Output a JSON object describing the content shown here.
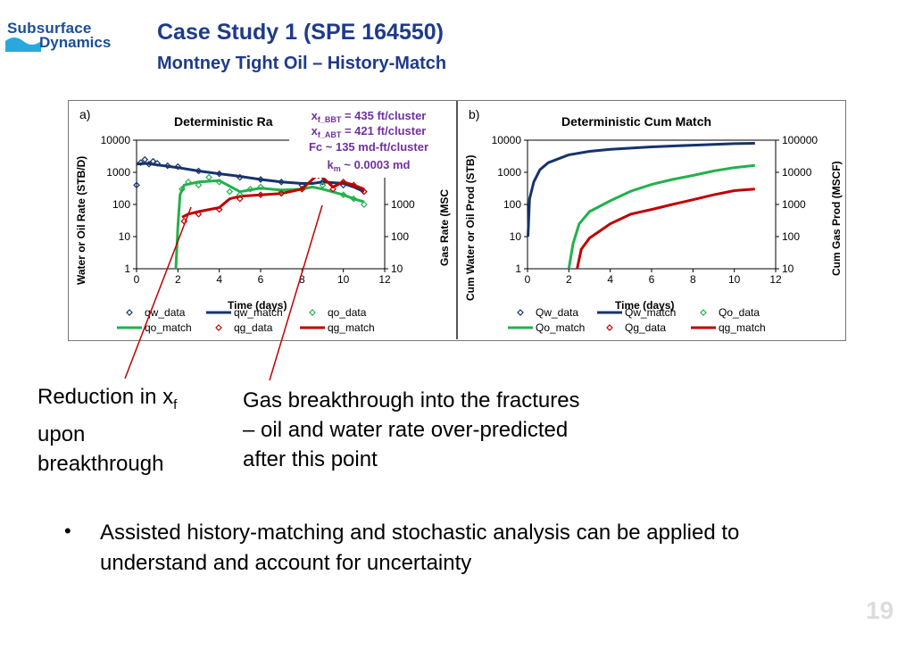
{
  "logo": {
    "line1": "Subsurface",
    "line2": "Dynamics"
  },
  "header": {
    "title": "Case Study 1 (SPE 164550)",
    "subtitle": "Montney Tight Oil – History-Match"
  },
  "callouts": {
    "reduction_main": "Reduction in x",
    "reduction_sub": "f",
    "reduction_rest1": "upon",
    "reduction_rest2": "breakthrough",
    "gas_line1": "Gas breakthrough into the fractures",
    "gas_line2": "– oil and water rate over-predicted",
    "gas_line3": "after this point"
  },
  "bullet": {
    "marker": "•",
    "text": "Assisted history-matching and stochastic analysis can be applied to understand and account for uncertainty"
  },
  "page_number": "19",
  "chart_data": [
    {
      "type": "scatter",
      "panel_label": "a)",
      "title": "Deterministic Ra",
      "xlabel": "Time (days)",
      "ylabel": "Water or Oil Rate (STB/D)",
      "y2label": "Gas Rate (MSC",
      "xlim": [
        0,
        12
      ],
      "ylim": [
        1,
        10000
      ],
      "y2lim": [
        10,
        100000
      ],
      "yscale": "log",
      "xticks": [
        "0",
        "2",
        "4",
        "6",
        "8",
        "10",
        "12"
      ],
      "yticks": [
        "1",
        "10",
        "100",
        "1000",
        "10000"
      ],
      "y2ticks": [
        "10",
        "100",
        "1000",
        "10000"
      ],
      "annotations": [
        {
          "main": "x",
          "sub": "f_BBT",
          "rest": " = 435 ft/cluster"
        },
        {
          "main": "x",
          "sub": "f_ABT",
          "rest": " = 421 ft/cluster"
        },
        {
          "main": "Fc ~ 135 md-ft/cluster",
          "sub": "",
          "rest": ""
        },
        {
          "main": "k",
          "sub": "m",
          "rest": " ~ 0.0003 md"
        }
      ],
      "legend": [
        "qw_data",
        "qw_match",
        "qo_data",
        "qo_match",
        "qg_data",
        "qg_match"
      ],
      "colors": {
        "water": "#16336b",
        "oil": "#22b14c",
        "gas": "#c00000"
      },
      "series": [
        {
          "name": "qw_match",
          "style": "line",
          "color": "#16336b",
          "axis": "left",
          "x": [
            0,
            0.5,
            1,
            2,
            3,
            4,
            5,
            6,
            7,
            8,
            8.5,
            9,
            10,
            10.5,
            11
          ],
          "y": [
            1800,
            1900,
            1700,
            1400,
            1100,
            900,
            750,
            600,
            500,
            450,
            450,
            500,
            450,
            350,
            250
          ]
        },
        {
          "name": "qo_match",
          "style": "line",
          "color": "#22b14c",
          "axis": "left",
          "x": [
            1.9,
            2.0,
            2.1,
            2.3,
            3,
            4,
            5,
            6,
            7,
            8,
            8.5,
            9,
            10,
            10.5,
            11
          ],
          "y": [
            1,
            20,
            200,
            400,
            500,
            550,
            250,
            320,
            280,
            300,
            350,
            300,
            200,
            150,
            120
          ]
        },
        {
          "name": "qg_match",
          "style": "line",
          "color": "#c00000",
          "axis": "right",
          "x": [
            2.2,
            2.5,
            3,
            4,
            4.5,
            5,
            6,
            7,
            8,
            8.8,
            9.5,
            10,
            10.5,
            11
          ],
          "y": [
            400,
            500,
            600,
            800,
            1500,
            1800,
            2000,
            2200,
            3000,
            9000,
            3500,
            5000,
            4000,
            3000
          ]
        },
        {
          "name": "qw_data",
          "style": "marker",
          "color": "#16336b",
          "axis": "left",
          "x": [
            0,
            0.2,
            0.4,
            0.6,
            0.8,
            1,
            1.5,
            2,
            3,
            4,
            5,
            6,
            7,
            8,
            9,
            10,
            11
          ],
          "y": [
            400,
            2000,
            2500,
            1800,
            2200,
            1900,
            1600,
            1500,
            1100,
            900,
            700,
            600,
            500,
            400,
            500,
            400,
            250
          ]
        },
        {
          "name": "qo_data",
          "style": "marker",
          "color": "#22b14c",
          "axis": "left",
          "x": [
            2.2,
            2.5,
            3,
            3.5,
            4,
            4.5,
            5,
            5.5,
            6,
            7,
            8,
            9,
            10,
            10.5,
            11
          ],
          "y": [
            300,
            500,
            400,
            700,
            500,
            250,
            200,
            300,
            350,
            250,
            300,
            400,
            200,
            150,
            100
          ]
        },
        {
          "name": "qg_data",
          "style": "marker",
          "color": "#c00000",
          "axis": "right",
          "x": [
            2.3,
            3,
            4,
            5,
            6,
            7,
            8,
            8.8,
            9.5,
            10,
            10.5,
            11
          ],
          "y": [
            300,
            500,
            700,
            1500,
            2000,
            2200,
            3000,
            8000,
            3000,
            5000,
            4000,
            2500
          ]
        }
      ]
    },
    {
      "type": "line",
      "panel_label": "b)",
      "title": "Deterministic Cum Match",
      "xlabel": "Time (days)",
      "ylabel": "Cum Water or Oil Prod (STB)",
      "y2label": "Cum Gas Prod (MSCF)",
      "xlim": [
        0,
        12
      ],
      "ylim": [
        1,
        10000
      ],
      "y2lim": [
        10,
        100000
      ],
      "yscale": "log",
      "xticks": [
        "0",
        "2",
        "4",
        "6",
        "8",
        "10",
        "12"
      ],
      "yticks": [
        "1",
        "10",
        "100",
        "1000",
        "10000"
      ],
      "y2ticks": [
        "10",
        "100",
        "1000",
        "10000",
        "100000"
      ],
      "legend": [
        "Qw_data",
        "Qw_match",
        "Qo_data",
        "Qo_match",
        "Qg_data",
        "qg_match"
      ],
      "colors": {
        "water": "#16336b",
        "oil": "#22b14c",
        "gas": "#c00000"
      },
      "series": [
        {
          "name": "Qw_match",
          "style": "line",
          "color": "#16336b",
          "axis": "left",
          "x": [
            0.02,
            0.1,
            0.3,
            0.6,
            1,
            2,
            3,
            4,
            6,
            8,
            10,
            11
          ],
          "y": [
            10,
            150,
            500,
            1200,
            2000,
            3500,
            4500,
            5200,
            6200,
            7000,
            7800,
            8000
          ]
        },
        {
          "name": "Qo_match",
          "style": "line",
          "color": "#22b14c",
          "axis": "left",
          "x": [
            2.0,
            2.2,
            2.5,
            3,
            4,
            5,
            6,
            7,
            8,
            9,
            10,
            11
          ],
          "y": [
            1,
            6,
            25,
            60,
            130,
            260,
            420,
            600,
            800,
            1100,
            1400,
            1650
          ]
        },
        {
          "name": "qg_match",
          "style": "line",
          "color": "#c00000",
          "axis": "right",
          "x": [
            2.4,
            2.6,
            3,
            4,
            5,
            6,
            7,
            8,
            9,
            10,
            11
          ],
          "y": [
            10,
            40,
            90,
            250,
            500,
            700,
            1000,
            1400,
            2000,
            2700,
            3000
          ]
        }
      ]
    }
  ]
}
